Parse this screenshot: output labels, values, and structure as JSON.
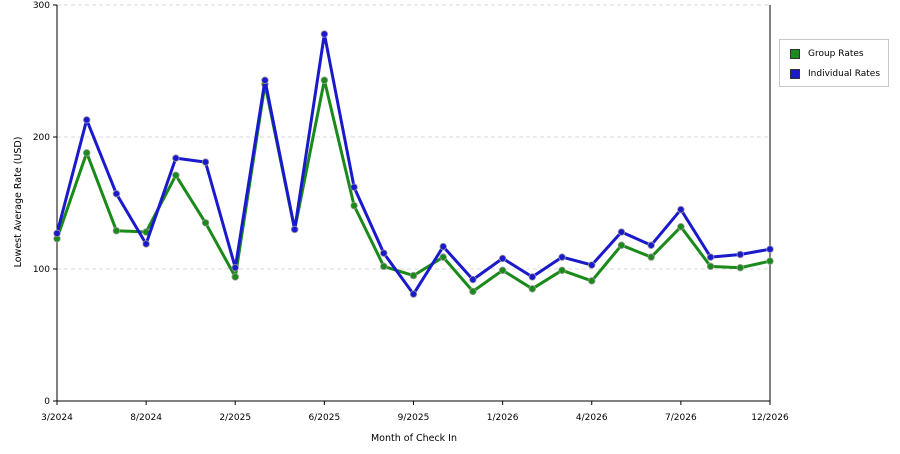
{
  "chart_data": {
    "type": "line",
    "title": "",
    "xlabel": "Month of Check In",
    "ylabel": "Lowest Average Rate (USD)",
    "ylim": [
      0,
      300
    ],
    "y_ticks": [
      "0",
      "100",
      "200",
      "300"
    ],
    "x_ticks": [
      "3/2024",
      "8/2024",
      "2/2025",
      "6/2025",
      "9/2025",
      "1/2026",
      "4/2026",
      "7/2026",
      "12/2026"
    ],
    "grid": "horizontal dashed",
    "legend_position": "right",
    "series": [
      {
        "name": "Group Rates",
        "color": "#1a8a1a",
        "values": [
          123,
          188,
          129,
          128,
          171,
          135,
          94,
          240,
          130,
          243,
          148,
          102,
          95,
          109,
          83,
          99,
          85,
          99,
          91,
          118,
          109,
          132,
          102,
          101,
          106
        ]
      },
      {
        "name": "Individual Rates",
        "color": "#1a1acc",
        "values": [
          127,
          213,
          157,
          119,
          184,
          181,
          101,
          243,
          130,
          278,
          162,
          112,
          81,
          117,
          92,
          108,
          94,
          109,
          103,
          128,
          118,
          145,
          109,
          111,
          115
        ]
      }
    ]
  }
}
